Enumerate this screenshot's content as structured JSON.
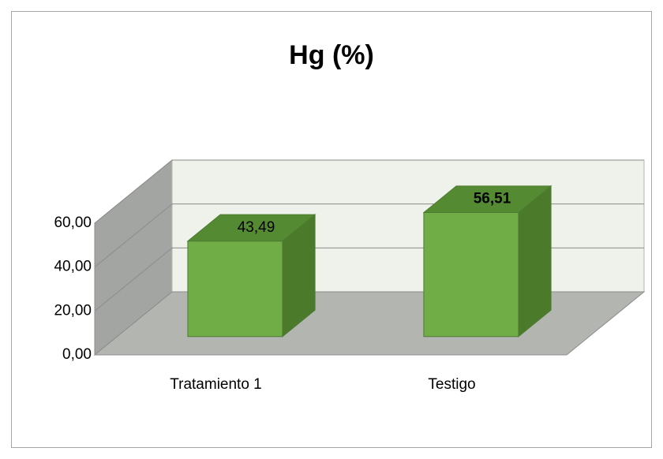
{
  "chart_data": {
    "type": "bar3d",
    "title": "Hg (%)",
    "categories": [
      "Tratamiento 1",
      "Testigo"
    ],
    "values": [
      43.49,
      56.51
    ],
    "value_labels": [
      "43,49",
      "56,51"
    ],
    "value_label_weights": [
      "normal",
      "bold"
    ],
    "color": "#70ad47",
    "ylim": [
      0,
      60
    ],
    "yticks": [
      {
        "value": 0,
        "label": "0,00"
      },
      {
        "value": 20,
        "label": "20,00"
      },
      {
        "value": 40,
        "label": "40,00"
      },
      {
        "value": 60,
        "label": "60,00"
      }
    ],
    "grid": true
  }
}
